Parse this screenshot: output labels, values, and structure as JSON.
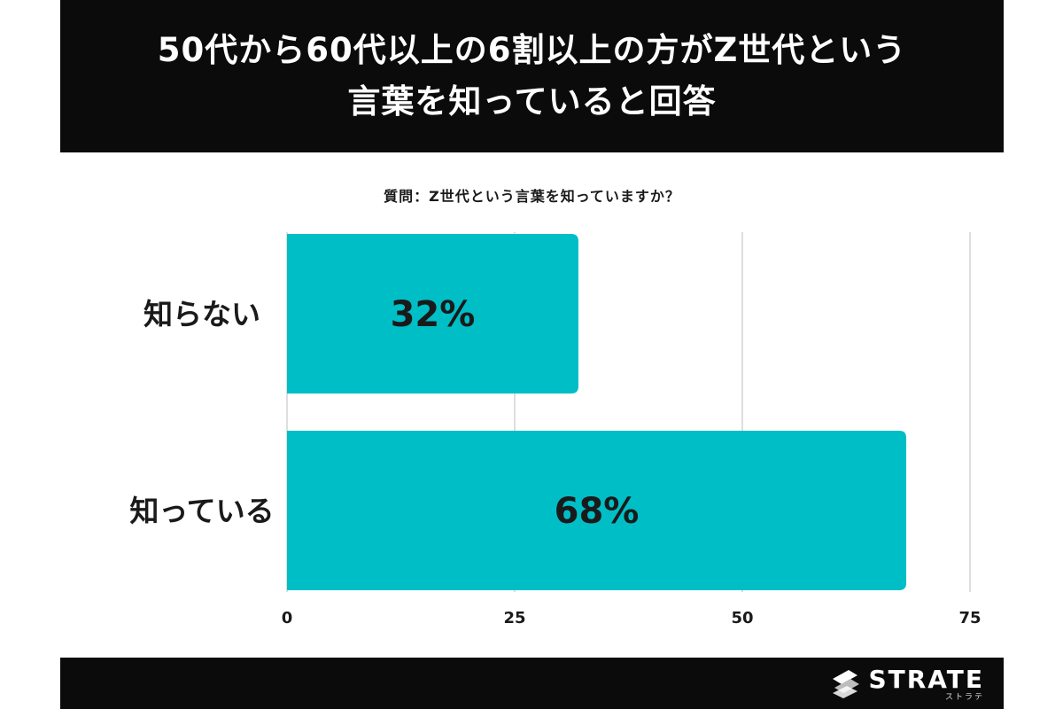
{
  "header": {
    "title_line1": "50代から60代以上の6割以上の方がZ世代という",
    "title_line2": "言葉を知っていると回答"
  },
  "question": "質問：Z世代という言葉を知っていますか？",
  "chart_data": {
    "type": "bar",
    "orientation": "horizontal",
    "categories": [
      "知らない",
      "知っている"
    ],
    "values": [
      32,
      68
    ],
    "value_labels": [
      "32%",
      "68%"
    ],
    "xlim": [
      0,
      75
    ],
    "xticks": [
      "0",
      "25",
      "50",
      "75"
    ],
    "grid": true,
    "bar_color": "#00BEC6"
  },
  "footer": {
    "logo_text": "STRATE",
    "logo_sub": "ストラテ",
    "logo_icon": "strate-logo-icon"
  },
  "colors": {
    "header_bg": "#0b0b0b",
    "bar": "#00BEC6",
    "grid": "#d4d4d4"
  }
}
